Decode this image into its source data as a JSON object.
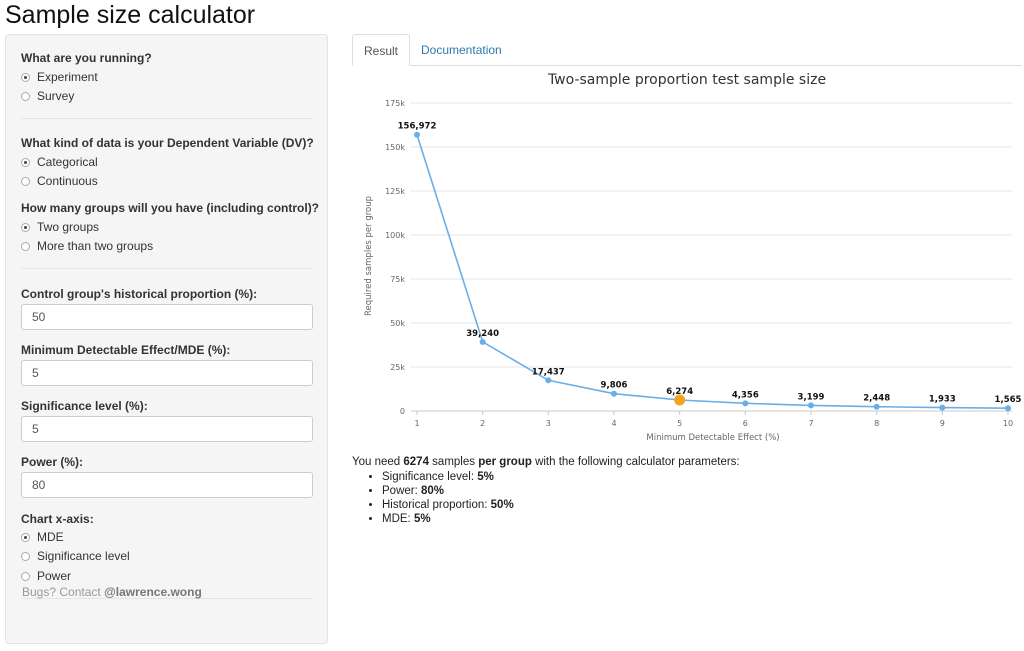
{
  "app": {
    "title": "Sample size calculator"
  },
  "sidebar": {
    "q_running": "What are you running?",
    "running_options": [
      "Experiment",
      "Survey"
    ],
    "q_dv": "What kind of data is your Dependent Variable (DV)?",
    "dv_options": [
      "Categorical",
      "Continuous"
    ],
    "q_groups": "How many groups will you have (including control)?",
    "group_options": [
      "Two groups",
      "More than two groups"
    ],
    "historical_label": "Control group's historical proportion (%):",
    "historical_value": "50",
    "mde_label": "Minimum Detectable Effect/MDE (%):",
    "mde_value": "5",
    "sig_label": "Significance level (%):",
    "sig_value": "5",
    "power_label": "Power (%):",
    "power_value": "80",
    "xaxis_label": "Chart x-axis:",
    "xaxis_options": [
      "MDE",
      "Significance level",
      "Power"
    ],
    "footer_prefix": "Bugs? Contact ",
    "footer_contact": "@lawrence.wong"
  },
  "tabs": {
    "result": "Result",
    "documentation": "Documentation"
  },
  "chart_data": {
    "type": "line",
    "title": "Two-sample proportion test sample size",
    "xlabel": "Minimum Detectable Effect (%)",
    "ylabel": "Required samples per group",
    "x": [
      1,
      2,
      3,
      4,
      5,
      6,
      7,
      8,
      9,
      10
    ],
    "values": [
      156972,
      39240,
      17437,
      9806,
      6274,
      4356,
      3199,
      2448,
      1933,
      1565
    ],
    "data_labels": [
      "156,972",
      "39,240",
      "17,437",
      "9,806",
      "6,274",
      "4,356",
      "3,199",
      "2,448",
      "1,933",
      "1,565"
    ],
    "highlight_x": 5,
    "ylim": [
      0,
      175000
    ],
    "yticks": [
      0,
      25000,
      50000,
      75000,
      100000,
      125000,
      150000,
      175000
    ],
    "ytick_labels": [
      "0",
      "25k",
      "50k",
      "75k",
      "100k",
      "125k",
      "150k",
      "175k"
    ],
    "xlim": [
      1,
      10
    ],
    "line_color": "#6aaee8",
    "highlight_color": "#f7a21b",
    "grid": true,
    "legend": "none"
  },
  "summary": {
    "intro_prefix": "You need ",
    "n": "6274",
    "intro_mid": " samples ",
    "per_group": "per group",
    "intro_suffix": " with the following calculator parameters:",
    "params": [
      {
        "label": "Significance level: ",
        "value": "5%"
      },
      {
        "label": "Power: ",
        "value": "80%"
      },
      {
        "label": "Historical proportion: ",
        "value": "50%"
      },
      {
        "label": "MDE: ",
        "value": "5%"
      }
    ]
  }
}
